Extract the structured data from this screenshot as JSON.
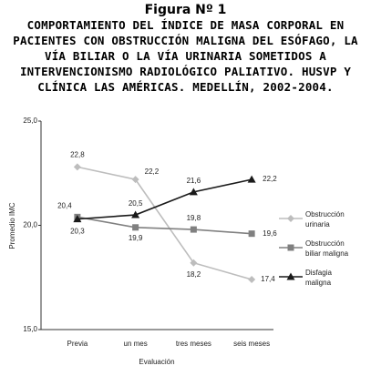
{
  "chart_data": {
    "type": "line",
    "title": "Figura Nº 1",
    "subtitle": "COMPORTAMIENTO DEL ÍNDICE DE MASA CORPORAL EN PACIENTES CON OBSTRUCCIÓN MALIGNA DEL ESÓFAGO, LA VÍA BILIAR O LA VÍA URINARIA SOMETIDOS A INTERVENCIONISMO RADIOLÓGICO PALIATIVO. HUSVP Y CLÍNICA LAS AMÉRICAS. MEDELLÍN, 2002-2004.",
    "x_label": "Evaluación",
    "y_label": "Promedio IMC",
    "categories": [
      "Previa",
      "un mes",
      "tres meses",
      "seis meses"
    ],
    "ylim": [
      15,
      25
    ],
    "yticks": [
      {
        "value": 15,
        "label": "15,0"
      },
      {
        "value": 20,
        "label": "20,0"
      },
      {
        "value": 25,
        "label": "25,0"
      }
    ],
    "grid": false,
    "legend": "right",
    "series": [
      {
        "name": "Obstrucción urinaria",
        "color": "#bdbdbd",
        "marker": "diamond",
        "values": [
          22.8,
          22.2,
          18.2,
          17.4
        ],
        "value_labels": [
          "22,8",
          "22,2",
          "18,2",
          "17,4"
        ]
      },
      {
        "name": "Obstrucción biliar maligna",
        "color": "#808080",
        "marker": "square",
        "values": [
          20.4,
          19.9,
          19.8,
          19.6
        ],
        "value_labels": [
          "20,4",
          "19,9",
          "19,8",
          "19,6"
        ]
      },
      {
        "name": "Disfagia maligna",
        "color": "#1a1a1a",
        "marker": "triangle",
        "values": [
          20.3,
          20.5,
          21.6,
          22.2
        ],
        "value_labels": [
          "20,3",
          "20,5",
          "21,6",
          "22,2"
        ]
      }
    ]
  }
}
